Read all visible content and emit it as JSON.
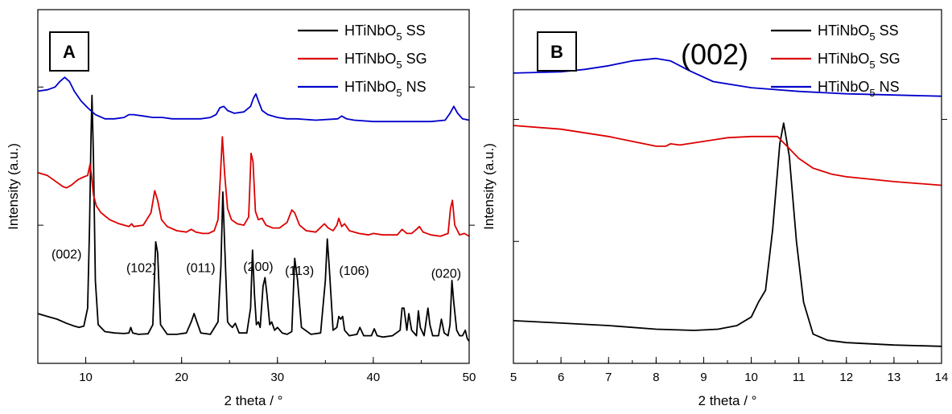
{
  "chart_data": [
    {
      "type": "line",
      "panel_label": "A",
      "xlabel": "2 theta / °",
      "ylabel": "Intensity (a.u.)",
      "xlim": [
        5,
        50
      ],
      "xticks": [
        10,
        20,
        30,
        40,
        50
      ],
      "legend_position": "top-right",
      "annotations": [
        {
          "text": "(002)",
          "x": 8.0,
          "y": 0.38
        },
        {
          "text": "(102)",
          "x": 15.8,
          "y": 0.33
        },
        {
          "text": "(011)",
          "x": 22.0,
          "y": 0.33
        },
        {
          "text": "(200)",
          "x": 28.0,
          "y": 0.335
        },
        {
          "text": "(113)",
          "x": 32.3,
          "y": 0.32
        },
        {
          "text": "(106)",
          "x": 38.0,
          "y": 0.32
        },
        {
          "text": "(020)",
          "x": 47.6,
          "y": 0.31
        }
      ],
      "series": [
        {
          "name_main": "HTiNbO",
          "name_sub": "5",
          "name_suffix": " SS",
          "color": "#000000",
          "x": [
            5,
            6,
            7,
            8,
            8.8,
            9.3,
            9.8,
            10.2,
            10.4,
            10.55,
            10.65,
            10.8,
            11.0,
            11.3,
            12,
            13,
            14,
            14.5,
            14.7,
            14.9,
            15.5,
            16.5,
            17.0,
            17.3,
            17.5,
            17.8,
            18.5,
            19.5,
            20.5,
            21.0,
            21.3,
            21.6,
            22.0,
            23.0,
            23.8,
            24.1,
            24.3,
            24.5,
            24.8,
            25.0,
            25.3,
            25.6,
            26.0,
            26.8,
            27.2,
            27.4,
            27.6,
            27.8,
            28.0,
            28.2,
            28.5,
            28.7,
            28.9,
            29.2,
            29.4,
            29.7,
            30.0,
            30.5,
            31.0,
            31.5,
            31.8,
            32.1,
            32.5,
            33.5,
            34.5,
            35.0,
            35.2,
            35.4,
            35.8,
            36.2,
            36.4,
            36.6,
            36.8,
            37.0,
            37.5,
            38.3,
            38.6,
            39.0,
            39.8,
            40.1,
            40.4,
            41.0,
            42.0,
            42.8,
            43.0,
            43.2,
            43.5,
            43.7,
            44.0,
            44.5,
            44.7,
            44.9,
            45.3,
            45.7,
            45.9,
            46.2,
            46.8,
            47.1,
            47.4,
            47.8,
            48.0,
            48.2,
            48.4,
            48.7,
            49.0,
            49.3,
            49.6,
            49.8,
            50
          ],
          "y": [
            0.18,
            0.17,
            0.16,
            0.145,
            0.135,
            0.13,
            0.135,
            0.2,
            0.5,
            0.82,
            0.97,
            0.75,
            0.3,
            0.14,
            0.115,
            0.11,
            0.108,
            0.11,
            0.13,
            0.11,
            0.105,
            0.107,
            0.14,
            0.44,
            0.4,
            0.14,
            0.105,
            0.105,
            0.11,
            0.15,
            0.18,
            0.15,
            0.11,
            0.105,
            0.15,
            0.35,
            0.62,
            0.42,
            0.15,
            0.14,
            0.13,
            0.145,
            0.11,
            0.11,
            0.2,
            0.41,
            0.25,
            0.14,
            0.15,
            0.13,
            0.28,
            0.31,
            0.25,
            0.14,
            0.15,
            0.12,
            0.13,
            0.11,
            0.105,
            0.115,
            0.38,
            0.3,
            0.13,
            0.105,
            0.11,
            0.3,
            0.45,
            0.35,
            0.12,
            0.13,
            0.17,
            0.16,
            0.17,
            0.12,
            0.1,
            0.105,
            0.13,
            0.1,
            0.1,
            0.125,
            0.1,
            0.095,
            0.1,
            0.12,
            0.2,
            0.2,
            0.12,
            0.18,
            0.12,
            0.1,
            0.19,
            0.13,
            0.1,
            0.2,
            0.14,
            0.1,
            0.1,
            0.16,
            0.11,
            0.1,
            0.14,
            0.3,
            0.22,
            0.12,
            0.1,
            0.1,
            0.12,
            0.09,
            0.08
          ]
        },
        {
          "name_main": "HTiNbO",
          "name_sub": "5",
          "name_suffix": " SG",
          "color": "#dd0000",
          "x": [
            5,
            6,
            7,
            7.6,
            8.0,
            8.5,
            9.2,
            9.8,
            10.2,
            10.45,
            10.6,
            10.8,
            11.1,
            11.6,
            12.5,
            13.5,
            14.5,
            14.8,
            15.0,
            16.0,
            16.8,
            17.2,
            17.5,
            17.9,
            18.5,
            19.5,
            20.5,
            21.0,
            21.5,
            22.2,
            22.8,
            23.4,
            23.8,
            24.05,
            24.25,
            24.5,
            24.8,
            25.2,
            25.8,
            26.5,
            27.0,
            27.25,
            27.45,
            27.7,
            28.0,
            28.4,
            28.8,
            29.5,
            30.2,
            31.0,
            31.5,
            31.8,
            32.3,
            33.0,
            34.0,
            34.6,
            34.9,
            35.3,
            35.8,
            36.2,
            36.4,
            36.7,
            37.0,
            37.5,
            38.5,
            39.5,
            40.0,
            41.0,
            42.5,
            43.0,
            43.5,
            44.0,
            44.5,
            44.8,
            45.2,
            46.0,
            47.0,
            47.8,
            48.05,
            48.25,
            48.5,
            49.0,
            49.5,
            50
          ],
          "y": [
            0.69,
            0.68,
            0.655,
            0.64,
            0.635,
            0.645,
            0.665,
            0.675,
            0.68,
            0.72,
            0.68,
            0.61,
            0.57,
            0.545,
            0.52,
            0.505,
            0.495,
            0.505,
            0.495,
            0.5,
            0.545,
            0.625,
            0.59,
            0.52,
            0.495,
            0.48,
            0.475,
            0.485,
            0.475,
            0.47,
            0.47,
            0.48,
            0.52,
            0.68,
            0.82,
            0.68,
            0.56,
            0.52,
            0.505,
            0.5,
            0.53,
            0.76,
            0.73,
            0.55,
            0.52,
            0.525,
            0.5,
            0.49,
            0.49,
            0.51,
            0.555,
            0.545,
            0.5,
            0.48,
            0.475,
            0.495,
            0.505,
            0.49,
            0.48,
            0.5,
            0.525,
            0.495,
            0.505,
            0.48,
            0.47,
            0.465,
            0.47,
            0.465,
            0.465,
            0.485,
            0.47,
            0.47,
            0.485,
            0.495,
            0.475,
            0.465,
            0.46,
            0.47,
            0.56,
            0.59,
            0.5,
            0.465,
            0.47,
            0.46
          ]
        },
        {
          "name_main": "HTiNbO",
          "name_sub": "5",
          "name_suffix": " NS",
          "color": "#0000cc",
          "x": [
            5,
            6,
            6.8,
            7.3,
            7.8,
            8.3,
            8.8,
            9.5,
            10.2,
            11,
            12,
            13,
            14,
            14.5,
            15.0,
            16,
            17,
            18,
            19,
            20,
            21,
            22,
            23,
            23.6,
            24.0,
            24.4,
            24.8,
            25.5,
            26.5,
            27.2,
            27.5,
            27.75,
            28.0,
            28.4,
            29.0,
            30.0,
            31.0,
            32,
            34,
            36.3,
            36.7,
            37.2,
            38,
            40,
            42,
            44,
            46,
            47.5,
            48.0,
            48.4,
            48.8,
            49.3,
            50
          ],
          "y": [
            0.985,
            0.99,
            1.0,
            1.02,
            1.035,
            1.02,
            0.985,
            0.95,
            0.925,
            0.9,
            0.885,
            0.885,
            0.89,
            0.9,
            0.9,
            0.895,
            0.89,
            0.89,
            0.885,
            0.885,
            0.885,
            0.885,
            0.89,
            0.9,
            0.925,
            0.93,
            0.915,
            0.905,
            0.91,
            0.93,
            0.96,
            0.975,
            0.95,
            0.915,
            0.9,
            0.89,
            0.885,
            0.885,
            0.88,
            0.885,
            0.895,
            0.885,
            0.88,
            0.875,
            0.875,
            0.875,
            0.875,
            0.88,
            0.905,
            0.93,
            0.905,
            0.885,
            0.88
          ]
        }
      ]
    },
    {
      "type": "line",
      "panel_label": "B",
      "title": "(002)",
      "xlabel": "2 theta / °",
      "ylabel": "Intensity (a.u.)",
      "xlim": [
        5,
        14
      ],
      "xticks": [
        5,
        6,
        7,
        8,
        9,
        10,
        11,
        12,
        13,
        14
      ],
      "legend_position": "top-right",
      "series": [
        {
          "name_main": "HTiNbO",
          "name_sub": "5",
          "name_suffix": " SS",
          "color": "#000000",
          "x": [
            5,
            6,
            7,
            8,
            8.8,
            9.3,
            9.7,
            10.0,
            10.15,
            10.3,
            10.45,
            10.6,
            10.68,
            10.8,
            10.95,
            11.1,
            11.3,
            11.6,
            12,
            13,
            14
          ],
          "y": [
            0.175,
            0.165,
            0.155,
            0.14,
            0.135,
            0.14,
            0.155,
            0.19,
            0.25,
            0.3,
            0.55,
            0.9,
            0.985,
            0.85,
            0.5,
            0.25,
            0.12,
            0.095,
            0.085,
            0.075,
            0.07
          ]
        },
        {
          "name_main": "HTiNbO",
          "name_sub": "5",
          "name_suffix": " SG",
          "color": "#dd0000",
          "x": [
            5,
            6,
            7,
            7.5,
            8.0,
            8.2,
            8.3,
            8.5,
            9.0,
            9.5,
            10.0,
            10.3,
            10.55,
            10.75,
            11.0,
            11.3,
            11.7,
            12,
            13,
            14
          ],
          "y": [
            0.975,
            0.96,
            0.93,
            0.91,
            0.89,
            0.89,
            0.9,
            0.895,
            0.91,
            0.925,
            0.93,
            0.93,
            0.93,
            0.89,
            0.84,
            0.8,
            0.775,
            0.765,
            0.745,
            0.73
          ]
        },
        {
          "name_main": "HTiNbO",
          "name_sub": "5",
          "name_suffix": " NS",
          "color": "#0000cc",
          "x": [
            5,
            6,
            6.5,
            7,
            7.5,
            8,
            8.3,
            8.7,
            9.2,
            10,
            11,
            12,
            13,
            14
          ],
          "y": [
            1.19,
            1.195,
            1.205,
            1.22,
            1.24,
            1.25,
            1.24,
            1.2,
            1.155,
            1.13,
            1.115,
            1.105,
            1.1,
            1.095
          ]
        }
      ]
    }
  ]
}
